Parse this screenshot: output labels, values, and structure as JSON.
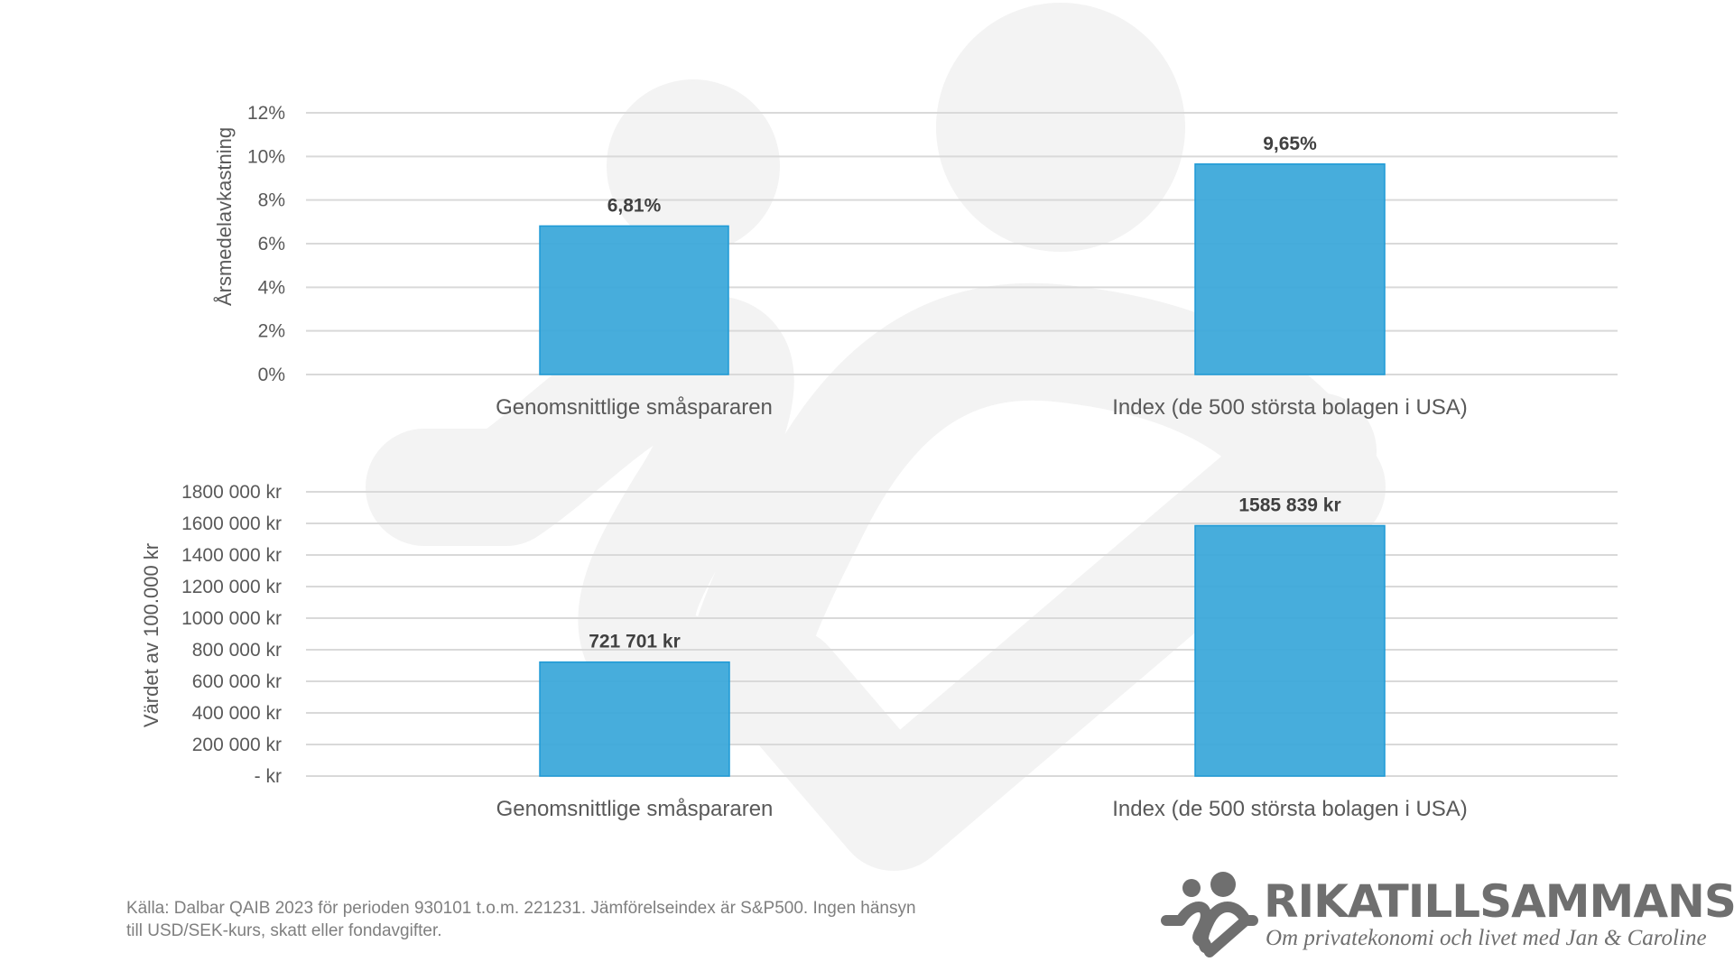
{
  "chart_data": [
    {
      "type": "bar",
      "title": "",
      "ylabel": "Årsmedelavkastning",
      "xlabel": "",
      "categories": [
        "Genomsnittlige småspararen",
        "Index (de 500 största bolagen i USA)"
      ],
      "values": [
        6.81,
        9.65
      ],
      "data_labels": [
        "6,81%",
        "9,65%"
      ],
      "ylim": [
        0,
        12
      ],
      "yticks": [
        0,
        2,
        4,
        6,
        8,
        10,
        12
      ],
      "ytick_labels": [
        "0%",
        "2%",
        "4%",
        "6%",
        "8%",
        "10%",
        "12%"
      ],
      "grid": true,
      "color": "#3da9da"
    },
    {
      "type": "bar",
      "title": "",
      "ylabel": "Värdet av 100.000 kr",
      "xlabel": "",
      "categories": [
        "Genomsnittlige småspararen",
        "Index (de 500 största bolagen i USA)"
      ],
      "values": [
        721701,
        1585839
      ],
      "data_labels": [
        "721 701 kr",
        "1585 839 kr"
      ],
      "ylim": [
        0,
        1800000
      ],
      "yticks": [
        0,
        200000,
        400000,
        600000,
        800000,
        1000000,
        1200000,
        1400000,
        1600000,
        1800000
      ],
      "ytick_labels": [
        "-   kr",
        "200 000 kr",
        "400 000 kr",
        "600 000 kr",
        "800 000 kr",
        "1000 000 kr",
        "1200 000 kr",
        "1400 000 kr",
        "1600 000 kr",
        "1800 000 kr"
      ],
      "grid": true,
      "color": "#3da9da"
    }
  ],
  "source": {
    "line1": "Källa: Dalbar QAIB 2023 för perioden 930101 t.o.m. 221231. Jämförelseindex är S&P500. Ingen hänsyn",
    "line2": "till USD/SEK-kurs, skatt eller fondavgifter."
  },
  "logo": {
    "title": "RIKATILLSAMMANS",
    "subtitle": "Om privatekonomi och livet med Jan & Caroline"
  }
}
